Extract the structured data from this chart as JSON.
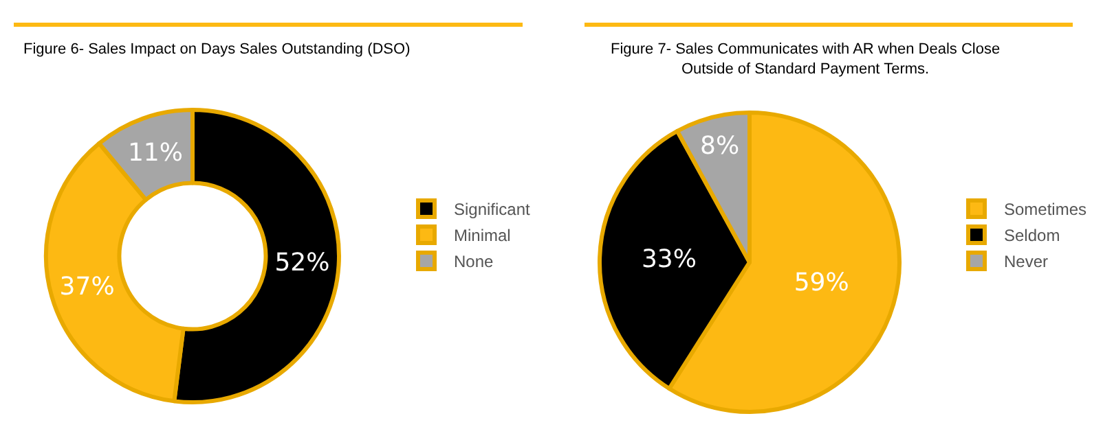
{
  "chart_data": [
    {
      "type": "donut",
      "title": "Figure 6- Sales Impact on Days Sales Outstanding (DSO)",
      "categories": [
        "Significant",
        "Minimal",
        "None"
      ],
      "values": [
        52,
        37,
        11
      ],
      "value_labels": [
        "52%",
        "37%",
        "11%"
      ],
      "colors": [
        "#000000",
        "#fdb913",
        "#a6a6a6"
      ],
      "legend": "right"
    },
    {
      "type": "pie",
      "title": "Figure 7- Sales Communicates with AR when Deals Close\nOutside of Standard Payment Terms.",
      "categories": [
        "Sometimes",
        "Seldom",
        "Never"
      ],
      "values": [
        59,
        33,
        8
      ],
      "value_labels": [
        "59%",
        "33%",
        "8%"
      ],
      "colors": [
        "#fdb913",
        "#000000",
        "#a6a6a6"
      ],
      "legend": "right"
    }
  ]
}
